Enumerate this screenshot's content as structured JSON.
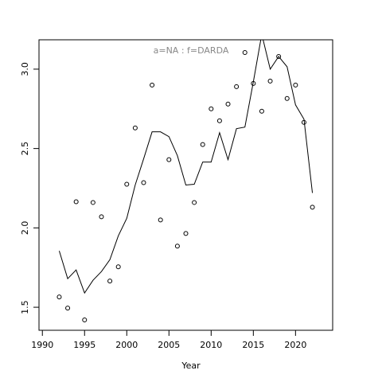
{
  "chart_data": {
    "type": "scatter",
    "title": "a=NA  :  f=DARDA",
    "x_label": "Year",
    "x": [
      1992,
      1993,
      1994,
      1995,
      1996,
      1997,
      1998,
      1999,
      2000,
      2001,
      2002,
      2003,
      2004,
      2005,
      2006,
      2007,
      2008,
      2009,
      2010,
      2011,
      2012,
      2013,
      2014,
      2015,
      2016,
      2017,
      2018,
      2019,
      2020,
      2021,
      2022
    ],
    "series": [
      {
        "mode": "points",
        "color": "#000000",
        "values": [
          1.565,
          1.495,
          2.165,
          1.42,
          2.16,
          2.07,
          1.665,
          1.755,
          2.275,
          2.63,
          2.285,
          2.9,
          2.05,
          2.43,
          1.885,
          1.965,
          2.16,
          2.525,
          2.75,
          2.675,
          2.78,
          2.89,
          3.105,
          2.91,
          2.735,
          2.925,
          3.08,
          2.815,
          2.9,
          2.665,
          2.13
        ]
      },
      {
        "mode": "line",
        "color": "#000000",
        "values": [
          1.855,
          1.68,
          1.735,
          1.59,
          1.67,
          1.725,
          1.8,
          1.95,
          2.06,
          2.27,
          2.435,
          2.605,
          2.605,
          2.575,
          2.455,
          2.27,
          2.275,
          2.415,
          2.415,
          2.6,
          2.43,
          2.625,
          2.635,
          2.92,
          3.22,
          3.0,
          3.08,
          3.015,
          2.775,
          2.685,
          2.22
        ]
      }
    ],
    "xlim": [
      1989.6,
      2024.4
    ],
    "ylim": [
      1.355,
      3.185
    ],
    "xticks": [
      1990,
      1995,
      2000,
      2005,
      2010,
      2015,
      2020
    ],
    "yticks": [
      1.5,
      {
        "value": 2.0,
        "label": "2.0"
      },
      2.5,
      {
        "value": 3.0,
        "label": "3.0"
      }
    ]
  }
}
